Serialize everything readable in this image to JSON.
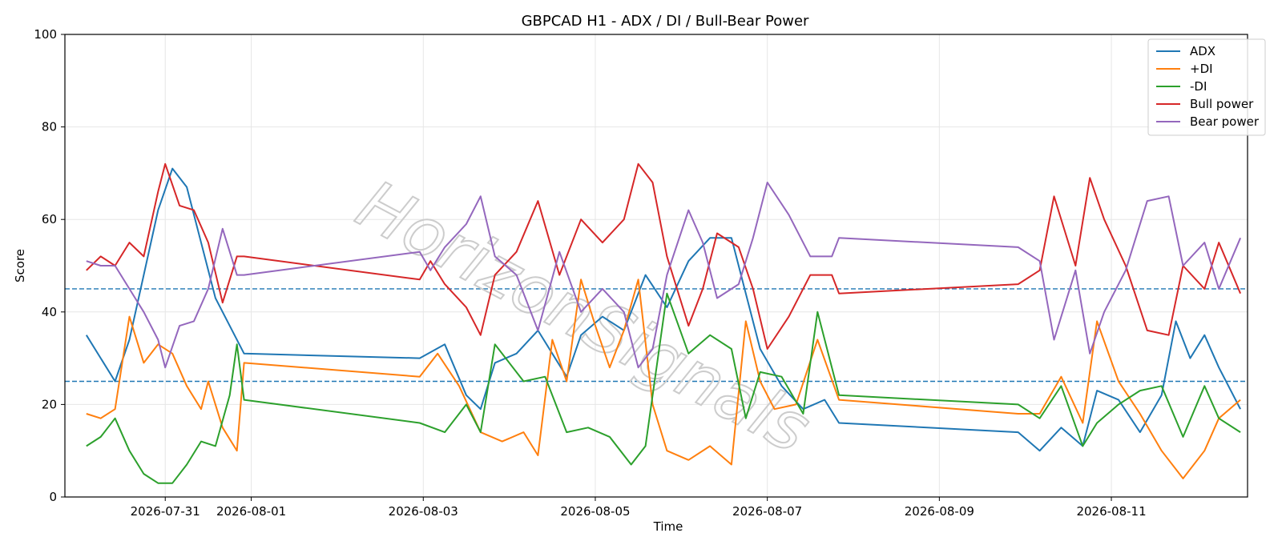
{
  "chart_data": {
    "type": "line",
    "title": "GBPCAD H1 - ADX / DI / Bull-Bear Power",
    "xlabel": "Time",
    "ylabel": "Score",
    "ylim": [
      0,
      100
    ],
    "yticks": [
      0,
      20,
      40,
      60,
      80,
      100
    ],
    "xlim": [
      "2026-07-29 20:00",
      "2026-08-12 14:00"
    ],
    "xticks": [
      "2026-07-31",
      "2026-08-01",
      "2026-08-03",
      "2026-08-05",
      "2026-08-07",
      "2026-08-09",
      "2026-08-11"
    ],
    "grid": true,
    "legend_position": "top-right",
    "watermark": "HorizonSignals",
    "reference_lines": [
      {
        "y": 45,
        "style": "dashed",
        "color": "#1f77b4"
      },
      {
        "y": 25,
        "style": "dashed",
        "color": "#1f77b4"
      }
    ],
    "series": [
      {
        "name": "ADX",
        "color": "#1f77b4",
        "points": [
          [
            "2026-07-30 02:00",
            35
          ],
          [
            "2026-07-30 06:00",
            30
          ],
          [
            "2026-07-30 10:00",
            25
          ],
          [
            "2026-07-30 14:00",
            34
          ],
          [
            "2026-07-30 18:00",
            48
          ],
          [
            "2026-07-30 22:00",
            62
          ],
          [
            "2026-07-31 02:00",
            71
          ],
          [
            "2026-07-31 06:00",
            67
          ],
          [
            "2026-07-31 10:00",
            55
          ],
          [
            "2026-07-31 14:00",
            43
          ],
          [
            "2026-07-31 18:00",
            37
          ],
          [
            "2026-07-31 22:00",
            31
          ],
          [
            "2026-08-02 23:00",
            30
          ],
          [
            "2026-08-03 06:00",
            33
          ],
          [
            "2026-08-03 12:00",
            22
          ],
          [
            "2026-08-03 16:00",
            19
          ],
          [
            "2026-08-03 20:00",
            29
          ],
          [
            "2026-08-04 02:00",
            31
          ],
          [
            "2026-08-04 08:00",
            36
          ],
          [
            "2026-08-04 12:00",
            31
          ],
          [
            "2026-08-04 16:00",
            26
          ],
          [
            "2026-08-04 20:00",
            35
          ],
          [
            "2026-08-05 02:00",
            39
          ],
          [
            "2026-08-05 08:00",
            36
          ],
          [
            "2026-08-05 14:00",
            48
          ],
          [
            "2026-08-05 20:00",
            41
          ],
          [
            "2026-08-06 02:00",
            51
          ],
          [
            "2026-08-06 08:00",
            56
          ],
          [
            "2026-08-06 14:00",
            56
          ],
          [
            "2026-08-06 18:00",
            44
          ],
          [
            "2026-08-06 22:00",
            32
          ],
          [
            "2026-08-07 04:00",
            24
          ],
          [
            "2026-08-07 10:00",
            19
          ],
          [
            "2026-08-07 16:00",
            21
          ],
          [
            "2026-08-07 20:00",
            16
          ],
          [
            "2026-08-09 22:00",
            14
          ],
          [
            "2026-08-10 04:00",
            10
          ],
          [
            "2026-08-10 10:00",
            15
          ],
          [
            "2026-08-10 16:00",
            11
          ],
          [
            "2026-08-10 20:00",
            23
          ],
          [
            "2026-08-11 02:00",
            21
          ],
          [
            "2026-08-11 08:00",
            14
          ],
          [
            "2026-08-11 14:00",
            22
          ],
          [
            "2026-08-11 18:00",
            38
          ],
          [
            "2026-08-11 22:00",
            30
          ],
          [
            "2026-08-12 02:00",
            35
          ],
          [
            "2026-08-12 06:00",
            28
          ],
          [
            "2026-08-12 12:00",
            19
          ]
        ]
      },
      {
        "name": "+DI",
        "color": "#ff7f0e",
        "points": [
          [
            "2026-07-30 02:00",
            18
          ],
          [
            "2026-07-30 06:00",
            17
          ],
          [
            "2026-07-30 10:00",
            19
          ],
          [
            "2026-07-30 14:00",
            39
          ],
          [
            "2026-07-30 18:00",
            29
          ],
          [
            "2026-07-30 22:00",
            33
          ],
          [
            "2026-07-31 02:00",
            31
          ],
          [
            "2026-07-31 06:00",
            24
          ],
          [
            "2026-07-31 10:00",
            19
          ],
          [
            "2026-07-31 12:00",
            25
          ],
          [
            "2026-07-31 16:00",
            15
          ],
          [
            "2026-07-31 20:00",
            10
          ],
          [
            "2026-07-31 22:00",
            29
          ],
          [
            "2026-08-02 23:00",
            26
          ],
          [
            "2026-08-03 04:00",
            31
          ],
          [
            "2026-08-03 10:00",
            24
          ],
          [
            "2026-08-03 16:00",
            14
          ],
          [
            "2026-08-03 22:00",
            12
          ],
          [
            "2026-08-04 04:00",
            14
          ],
          [
            "2026-08-04 08:00",
            9
          ],
          [
            "2026-08-04 12:00",
            34
          ],
          [
            "2026-08-04 16:00",
            25
          ],
          [
            "2026-08-04 20:00",
            47
          ],
          [
            "2026-08-05 00:00",
            37
          ],
          [
            "2026-08-05 04:00",
            28
          ],
          [
            "2026-08-05 08:00",
            36
          ],
          [
            "2026-08-05 12:00",
            47
          ],
          [
            "2026-08-05 16:00",
            20
          ],
          [
            "2026-08-05 20:00",
            10
          ],
          [
            "2026-08-06 02:00",
            8
          ],
          [
            "2026-08-06 08:00",
            11
          ],
          [
            "2026-08-06 14:00",
            7
          ],
          [
            "2026-08-06 18:00",
            38
          ],
          [
            "2026-08-06 22:00",
            25
          ],
          [
            "2026-08-07 02:00",
            19
          ],
          [
            "2026-08-07 08:00",
            20
          ],
          [
            "2026-08-07 14:00",
            34
          ],
          [
            "2026-08-07 20:00",
            21
          ],
          [
            "2026-08-09 22:00",
            18
          ],
          [
            "2026-08-10 04:00",
            18
          ],
          [
            "2026-08-10 10:00",
            26
          ],
          [
            "2026-08-10 16:00",
            16
          ],
          [
            "2026-08-10 20:00",
            38
          ],
          [
            "2026-08-11 02:00",
            25
          ],
          [
            "2026-08-11 08:00",
            18
          ],
          [
            "2026-08-11 14:00",
            10
          ],
          [
            "2026-08-11 20:00",
            4
          ],
          [
            "2026-08-12 02:00",
            10
          ],
          [
            "2026-08-12 06:00",
            17
          ],
          [
            "2026-08-12 12:00",
            21
          ]
        ]
      },
      {
        "name": "-DI",
        "color": "#2ca02c",
        "points": [
          [
            "2026-07-30 02:00",
            11
          ],
          [
            "2026-07-30 06:00",
            13
          ],
          [
            "2026-07-30 10:00",
            17
          ],
          [
            "2026-07-30 14:00",
            10
          ],
          [
            "2026-07-30 18:00",
            5
          ],
          [
            "2026-07-30 22:00",
            3
          ],
          [
            "2026-07-31 02:00",
            3
          ],
          [
            "2026-07-31 06:00",
            7
          ],
          [
            "2026-07-31 10:00",
            12
          ],
          [
            "2026-07-31 14:00",
            11
          ],
          [
            "2026-07-31 18:00",
            22
          ],
          [
            "2026-07-31 20:00",
            33
          ],
          [
            "2026-07-31 22:00",
            21
          ],
          [
            "2026-08-02 23:00",
            16
          ],
          [
            "2026-08-03 06:00",
            14
          ],
          [
            "2026-08-03 12:00",
            20
          ],
          [
            "2026-08-03 16:00",
            14
          ],
          [
            "2026-08-03 20:00",
            33
          ],
          [
            "2026-08-04 04:00",
            25
          ],
          [
            "2026-08-04 10:00",
            26
          ],
          [
            "2026-08-04 16:00",
            14
          ],
          [
            "2026-08-04 22:00",
            15
          ],
          [
            "2026-08-05 04:00",
            13
          ],
          [
            "2026-08-05 10:00",
            7
          ],
          [
            "2026-08-05 14:00",
            11
          ],
          [
            "2026-08-05 20:00",
            44
          ],
          [
            "2026-08-06 02:00",
            31
          ],
          [
            "2026-08-06 08:00",
            35
          ],
          [
            "2026-08-06 14:00",
            32
          ],
          [
            "2026-08-06 18:00",
            17
          ],
          [
            "2026-08-06 22:00",
            27
          ],
          [
            "2026-08-07 04:00",
            26
          ],
          [
            "2026-08-07 10:00",
            18
          ],
          [
            "2026-08-07 14:00",
            40
          ],
          [
            "2026-08-07 20:00",
            22
          ],
          [
            "2026-08-09 22:00",
            20
          ],
          [
            "2026-08-10 04:00",
            17
          ],
          [
            "2026-08-10 10:00",
            24
          ],
          [
            "2026-08-10 16:00",
            11
          ],
          [
            "2026-08-10 20:00",
            16
          ],
          [
            "2026-08-11 02:00",
            20
          ],
          [
            "2026-08-11 08:00",
            23
          ],
          [
            "2026-08-11 14:00",
            24
          ],
          [
            "2026-08-11 20:00",
            13
          ],
          [
            "2026-08-12 02:00",
            24
          ],
          [
            "2026-08-12 06:00",
            17
          ],
          [
            "2026-08-12 12:00",
            14
          ]
        ]
      },
      {
        "name": "Bull power",
        "color": "#d62728",
        "points": [
          [
            "2026-07-30 02:00",
            49
          ],
          [
            "2026-07-30 06:00",
            52
          ],
          [
            "2026-07-30 10:00",
            50
          ],
          [
            "2026-07-30 14:00",
            55
          ],
          [
            "2026-07-30 18:00",
            52
          ],
          [
            "2026-07-30 22:00",
            66
          ],
          [
            "2026-07-31 00:00",
            72
          ],
          [
            "2026-07-31 04:00",
            63
          ],
          [
            "2026-07-31 08:00",
            62
          ],
          [
            "2026-07-31 12:00",
            55
          ],
          [
            "2026-07-31 16:00",
            42
          ],
          [
            "2026-07-31 20:00",
            52
          ],
          [
            "2026-07-31 22:00",
            52
          ],
          [
            "2026-08-02 23:00",
            47
          ],
          [
            "2026-08-03 02:00",
            51
          ],
          [
            "2026-08-03 06:00",
            46
          ],
          [
            "2026-08-03 12:00",
            41
          ],
          [
            "2026-08-03 16:00",
            35
          ],
          [
            "2026-08-03 20:00",
            48
          ],
          [
            "2026-08-04 02:00",
            53
          ],
          [
            "2026-08-04 08:00",
            64
          ],
          [
            "2026-08-04 14:00",
            48
          ],
          [
            "2026-08-04 20:00",
            60
          ],
          [
            "2026-08-05 02:00",
            55
          ],
          [
            "2026-08-05 08:00",
            60
          ],
          [
            "2026-08-05 12:00",
            72
          ],
          [
            "2026-08-05 16:00",
            68
          ],
          [
            "2026-08-05 20:00",
            52
          ],
          [
            "2026-08-06 02:00",
            37
          ],
          [
            "2026-08-06 06:00",
            45
          ],
          [
            "2026-08-06 10:00",
            57
          ],
          [
            "2026-08-06 16:00",
            54
          ],
          [
            "2026-08-06 20:00",
            45
          ],
          [
            "2026-08-07 00:00",
            32
          ],
          [
            "2026-08-07 06:00",
            39
          ],
          [
            "2026-08-07 12:00",
            48
          ],
          [
            "2026-08-07 18:00",
            48
          ],
          [
            "2026-08-07 20:00",
            44
          ],
          [
            "2026-08-09 22:00",
            46
          ],
          [
            "2026-08-10 04:00",
            49
          ],
          [
            "2026-08-10 08:00",
            65
          ],
          [
            "2026-08-10 14:00",
            50
          ],
          [
            "2026-08-10 18:00",
            69
          ],
          [
            "2026-08-10 22:00",
            60
          ],
          [
            "2026-08-11 04:00",
            50
          ],
          [
            "2026-08-11 10:00",
            36
          ],
          [
            "2026-08-11 16:00",
            35
          ],
          [
            "2026-08-11 20:00",
            50
          ],
          [
            "2026-08-12 02:00",
            45
          ],
          [
            "2026-08-12 06:00",
            55
          ],
          [
            "2026-08-12 12:00",
            44
          ]
        ]
      },
      {
        "name": "Bear power",
        "color": "#9467bd",
        "points": [
          [
            "2026-07-30 02:00",
            51
          ],
          [
            "2026-07-30 06:00",
            50
          ],
          [
            "2026-07-30 10:00",
            50
          ],
          [
            "2026-07-30 14:00",
            45
          ],
          [
            "2026-07-30 18:00",
            40
          ],
          [
            "2026-07-30 22:00",
            34
          ],
          [
            "2026-07-31 00:00",
            28
          ],
          [
            "2026-07-31 04:00",
            37
          ],
          [
            "2026-07-31 08:00",
            38
          ],
          [
            "2026-07-31 12:00",
            45
          ],
          [
            "2026-07-31 16:00",
            58
          ],
          [
            "2026-07-31 20:00",
            48
          ],
          [
            "2026-07-31 22:00",
            48
          ],
          [
            "2026-08-02 23:00",
            53
          ],
          [
            "2026-08-03 02:00",
            49
          ],
          [
            "2026-08-03 06:00",
            54
          ],
          [
            "2026-08-03 12:00",
            59
          ],
          [
            "2026-08-03 16:00",
            65
          ],
          [
            "2026-08-03 20:00",
            52
          ],
          [
            "2026-08-04 02:00",
            48
          ],
          [
            "2026-08-04 08:00",
            36
          ],
          [
            "2026-08-04 14:00",
            53
          ],
          [
            "2026-08-04 20:00",
            40
          ],
          [
            "2026-08-05 02:00",
            45
          ],
          [
            "2026-08-05 08:00",
            40
          ],
          [
            "2026-08-05 12:00",
            28
          ],
          [
            "2026-08-05 16:00",
            32
          ],
          [
            "2026-08-05 20:00",
            48
          ],
          [
            "2026-08-06 02:00",
            62
          ],
          [
            "2026-08-06 06:00",
            55
          ],
          [
            "2026-08-06 10:00",
            43
          ],
          [
            "2026-08-06 16:00",
            46
          ],
          [
            "2026-08-06 20:00",
            56
          ],
          [
            "2026-08-07 00:00",
            68
          ],
          [
            "2026-08-07 06:00",
            61
          ],
          [
            "2026-08-07 12:00",
            52
          ],
          [
            "2026-08-07 18:00",
            52
          ],
          [
            "2026-08-07 20:00",
            56
          ],
          [
            "2026-08-09 22:00",
            54
          ],
          [
            "2026-08-10 04:00",
            51
          ],
          [
            "2026-08-10 08:00",
            34
          ],
          [
            "2026-08-10 14:00",
            49
          ],
          [
            "2026-08-10 18:00",
            31
          ],
          [
            "2026-08-10 22:00",
            40
          ],
          [
            "2026-08-11 04:00",
            49
          ],
          [
            "2026-08-11 10:00",
            64
          ],
          [
            "2026-08-11 16:00",
            65
          ],
          [
            "2026-08-11 20:00",
            50
          ],
          [
            "2026-08-12 02:00",
            55
          ],
          [
            "2026-08-12 06:00",
            45
          ],
          [
            "2026-08-12 12:00",
            56
          ]
        ]
      }
    ]
  }
}
